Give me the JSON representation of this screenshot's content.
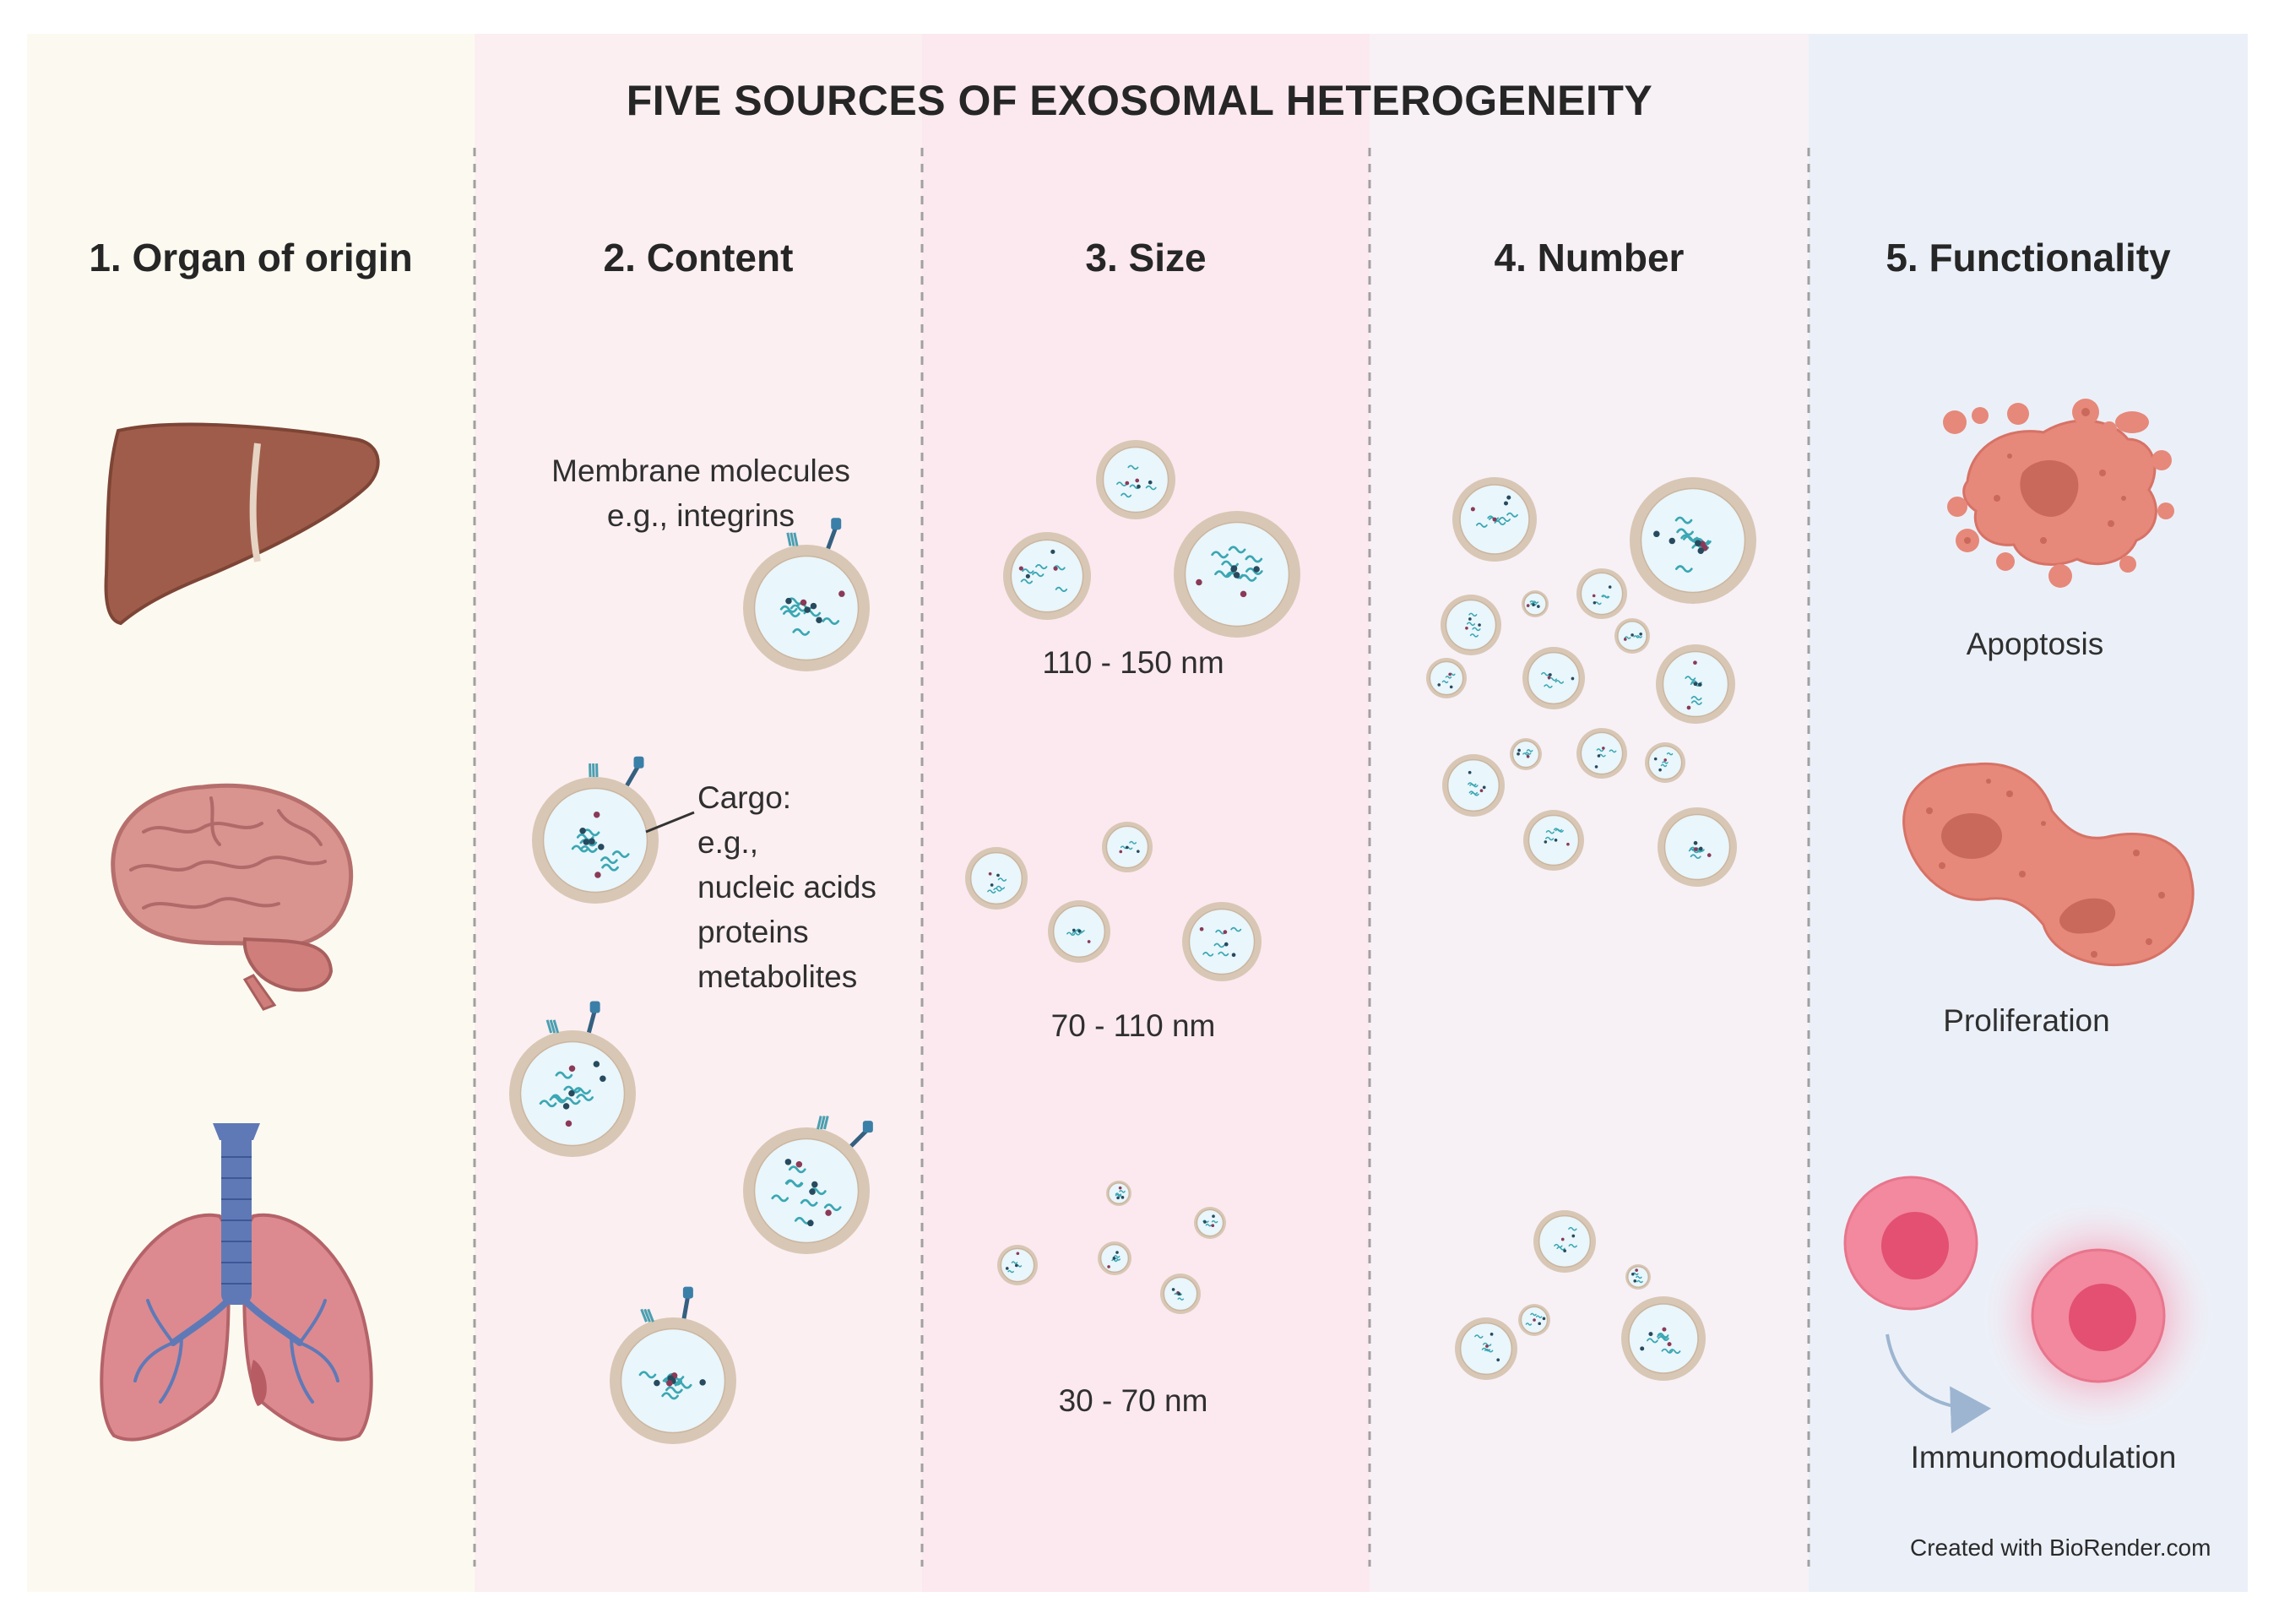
{
  "title": "FIVE SOURCES OF EXOSOMAL HETEROGENEITY",
  "columns": [
    {
      "heading": "1. Organ of origin",
      "bg": "#fcfaf0"
    },
    {
      "heading": "2. Content",
      "bg": "#fbeff1"
    },
    {
      "heading": "3. Size",
      "bg": "#fbe9ef"
    },
    {
      "heading": "4. Number",
      "bg": "#f7f1f6"
    },
    {
      "heading": "5. Functionality",
      "bg": "#ebf0f8"
    }
  ],
  "content": {
    "membrane_line1": "Membrane molecules",
    "membrane_line2": "e.g., integrins",
    "cargo_lines": [
      "Cargo:",
      "e.g.,",
      "nucleic acids",
      "proteins",
      "metabolites"
    ]
  },
  "size": {
    "labels": [
      "110 - 150 nm",
      "70 - 110 nm",
      "30 - 70 nm"
    ]
  },
  "functionality": {
    "labels": [
      "Apoptosis",
      "Proliferation",
      "Immunomodulation"
    ]
  },
  "credit": "Created with BioRender.com",
  "colors": {
    "vesicle_ring": "#d8c7b5",
    "vesicle_fill": "#e9f6fb",
    "rna": "#3aa7b3",
    "molecule": "#274a5e",
    "cell": "#e6887a",
    "liver": "#a05c4a",
    "brain": "#d9948f",
    "lung": "#dc8a8f",
    "trachea": "#5f79b7"
  },
  "icons": [
    "liver-icon",
    "brain-icon",
    "lungs-icon",
    "exosome-icon",
    "apoptotic-cell-icon",
    "dividing-cell-icon",
    "immune-cell-icon"
  ]
}
